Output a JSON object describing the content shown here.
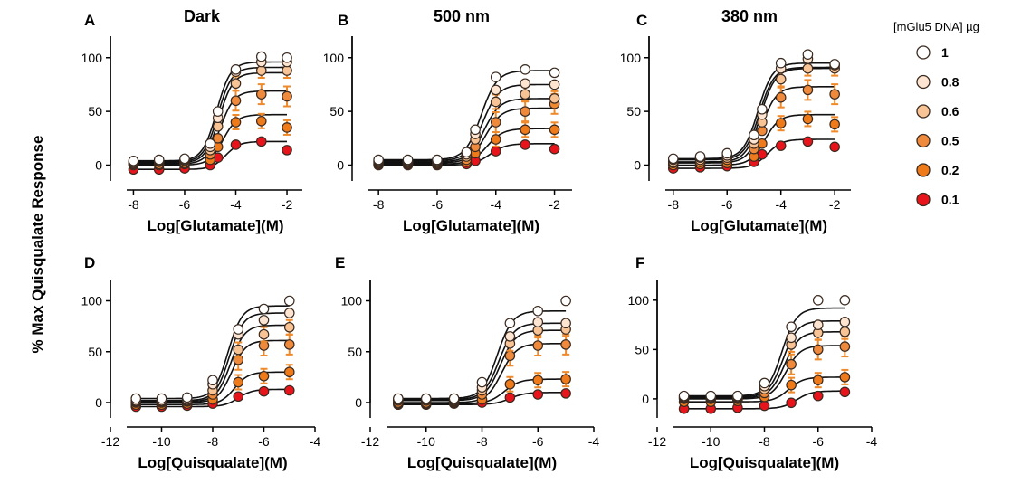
{
  "figure": {
    "ylabel": "% Max Quisqualate Response",
    "legend": {
      "title": "[mGlu5 DNA] µg",
      "entries": [
        {
          "label": "1",
          "color": "#ffffff"
        },
        {
          "label": "0.8",
          "color": "#fde5d2"
        },
        {
          "label": "0.6",
          "color": "#f8c495"
        },
        {
          "label": "0.5",
          "color": "#ef8a3c"
        },
        {
          "label": "0.2",
          "color": "#ee7a1a"
        },
        {
          "label": "0.1",
          "color": "#e8141c"
        }
      ]
    }
  },
  "chart_data": [
    {
      "panel": "A",
      "title": "Dark",
      "type": "scatter",
      "xlabel": "Log[Glutamate](M)",
      "xlim": [
        -8.9,
        -1.4
      ],
      "ylim": [
        -8,
        120
      ],
      "xticks": [
        "-8",
        "-6",
        "-4",
        "-2"
      ],
      "yticks": [
        "0",
        "50",
        "100"
      ],
      "x": [
        -8,
        -7,
        -6,
        -5,
        -4.7,
        -4,
        -3,
        -2
      ],
      "series": [
        {
          "name": "1",
          "values": [
            4,
            5,
            6,
            20,
            50,
            89,
            101,
            100
          ],
          "top": 96,
          "ec50": -4.75
        },
        {
          "name": "0.8",
          "values": [
            3,
            4,
            5,
            17,
            44,
            87,
            96,
            96
          ],
          "top": 91,
          "ec50": -4.7
        },
        {
          "name": "0.6",
          "values": [
            2,
            3,
            4,
            14,
            36,
            76,
            88,
            88
          ],
          "top": 86,
          "ec50": -4.65
        },
        {
          "name": "0.5",
          "values": [
            1,
            1,
            2,
            10,
            25,
            60,
            66,
            64
          ],
          "top": 69,
          "ec50": -4.6
        },
        {
          "name": "0.2",
          "values": [
            0,
            0,
            1,
            5,
            17,
            40,
            41,
            35
          ],
          "top": 47,
          "ec50": -4.5
        },
        {
          "name": "0.1",
          "values": [
            -4,
            -4,
            -3,
            0,
            7,
            19,
            22,
            14
          ],
          "top": 22,
          "ec50": -4.4
        }
      ]
    },
    {
      "panel": "B",
      "title": "500 nm",
      "type": "scatter",
      "xlabel": "Log[Glutamate](M)",
      "xlim": [
        -8.9,
        -1.4
      ],
      "ylim": [
        -8,
        120
      ],
      "xticks": [
        "-8",
        "-6",
        "-4",
        "-2"
      ],
      "yticks": [
        "0",
        "50",
        "100"
      ],
      "x": [
        -8,
        -7,
        -6,
        -5,
        -4.7,
        -4,
        -3,
        -2
      ],
      "series": [
        {
          "name": "1",
          "values": [
            5,
            5,
            5,
            12,
            33,
            82,
            89,
            86
          ],
          "top": 88,
          "ec50": -4.5
        },
        {
          "name": "0.8",
          "values": [
            4,
            4,
            4,
            10,
            29,
            70,
            76,
            75
          ],
          "top": 75,
          "ec50": -4.45
        },
        {
          "name": "0.6",
          "values": [
            3,
            3,
            3,
            8,
            24,
            59,
            66,
            62
          ],
          "top": 62,
          "ec50": -4.4
        },
        {
          "name": "0.5",
          "values": [
            2,
            2,
            2,
            5,
            17,
            40,
            50,
            57
          ],
          "top": 53,
          "ec50": -4.35
        },
        {
          "name": "0.2",
          "values": [
            1,
            1,
            1,
            3,
            11,
            24,
            33,
            33
          ],
          "top": 34,
          "ec50": -4.3
        },
        {
          "name": "0.1",
          "values": [
            0,
            0,
            0,
            1,
            4,
            13,
            19,
            15
          ],
          "top": 20,
          "ec50": -4.2
        }
      ]
    },
    {
      "panel": "C",
      "title": "380 nm",
      "type": "scatter",
      "xlabel": "Log[Glutamate](M)",
      "xlim": [
        -8.9,
        -1.4
      ],
      "ylim": [
        -8,
        120
      ],
      "xticks": [
        "-8",
        "-6",
        "-4",
        "-2"
      ],
      "yticks": [
        "0",
        "50",
        "100"
      ],
      "x": [
        -8,
        -7,
        -6,
        -5,
        -4.7,
        -4,
        -3,
        -2
      ],
      "series": [
        {
          "name": "1",
          "values": [
            6,
            8,
            11,
            28,
            52,
            95,
            103,
            94
          ],
          "top": 95,
          "ec50": -4.85
        },
        {
          "name": "0.8",
          "values": [
            5,
            7,
            9,
            24,
            47,
            90,
            99,
            93
          ],
          "top": 91,
          "ec50": -4.8
        },
        {
          "name": "0.6",
          "values": [
            3,
            5,
            7,
            20,
            40,
            80,
            90,
            90
          ],
          "top": 90,
          "ec50": -4.75
        },
        {
          "name": "0.5",
          "values": [
            2,
            3,
            5,
            15,
            32,
            63,
            70,
            66
          ],
          "top": 73,
          "ec50": -4.7
        },
        {
          "name": "0.2",
          "values": [
            0,
            1,
            2,
            8,
            20,
            39,
            43,
            38
          ],
          "top": 47,
          "ec50": -4.6
        },
        {
          "name": "0.1",
          "values": [
            -3,
            -2,
            -1,
            3,
            10,
            18,
            22,
            17
          ],
          "top": 24,
          "ec50": -4.5
        }
      ]
    },
    {
      "panel": "D",
      "title": "",
      "type": "scatter",
      "xlabel": "Log[Quisqualate](M)",
      "xlim": [
        -12,
        -4
      ],
      "ylim": [
        -8,
        120
      ],
      "xticks": [
        "-12",
        "-10",
        "-8",
        "-6",
        "-4"
      ],
      "yticks": [
        "0",
        "50",
        "100"
      ],
      "x": [
        -11,
        -10,
        -9,
        -8,
        -7,
        -6,
        -5
      ],
      "series": [
        {
          "name": "1",
          "values": [
            4,
            4,
            5,
            22,
            72,
            92,
            100
          ],
          "top": 95,
          "ec50": -7.4
        },
        {
          "name": "0.8",
          "values": [
            2,
            2,
            3,
            18,
            67,
            81,
            88
          ],
          "top": 88,
          "ec50": -7.35
        },
        {
          "name": "0.6",
          "values": [
            1,
            1,
            2,
            12,
            52,
            67,
            74
          ],
          "top": 76,
          "ec50": -7.3
        },
        {
          "name": "0.5",
          "values": [
            0,
            0,
            1,
            8,
            42,
            56,
            57
          ],
          "top": 61,
          "ec50": -7.25
        },
        {
          "name": "0.2",
          "values": [
            -2,
            -2,
            -1,
            3,
            20,
            26,
            30
          ],
          "top": 30,
          "ec50": -7.15
        },
        {
          "name": "0.1",
          "values": [
            -4,
            -4,
            -3,
            -1,
            6,
            11,
            12
          ],
          "top": 13,
          "ec50": -7.0
        }
      ]
    },
    {
      "panel": "E",
      "title": "",
      "type": "scatter",
      "xlabel": "Log[Quisqualate](M)",
      "xlim": [
        -12,
        -4
      ],
      "ylim": [
        -8,
        120
      ],
      "xticks": [
        "-12",
        "-10",
        "-8",
        "-6",
        "-4"
      ],
      "yticks": [
        "0",
        "50",
        "100"
      ],
      "x": [
        -11,
        -10,
        -9,
        -8,
        -7,
        -6,
        -5
      ],
      "series": [
        {
          "name": "1",
          "values": [
            4,
            4,
            4,
            20,
            78,
            90,
            100
          ],
          "top": 90,
          "ec50": -7.45
        },
        {
          "name": "0.8",
          "values": [
            3,
            3,
            3,
            15,
            65,
            79,
            78
          ],
          "top": 78,
          "ec50": -7.4
        },
        {
          "name": "0.6",
          "values": [
            2,
            2,
            2,
            12,
            58,
            71,
            72
          ],
          "top": 71,
          "ec50": -7.35
        },
        {
          "name": "0.5",
          "values": [
            0,
            0,
            1,
            8,
            46,
            56,
            57
          ],
          "top": 58,
          "ec50": -7.3
        },
        {
          "name": "0.2",
          "values": [
            -1,
            -1,
            0,
            3,
            18,
            22,
            23
          ],
          "top": 23,
          "ec50": -7.2
        },
        {
          "name": "0.1",
          "values": [
            -2,
            -2,
            -1,
            0,
            5,
            8,
            9
          ],
          "top": 10,
          "ec50": -7.0
        }
      ]
    },
    {
      "panel": "F",
      "title": "",
      "type": "scatter",
      "xlabel": "Log[Quisqualate](M)",
      "xlim": [
        -12,
        -4
      ],
      "ylim": [
        -12,
        120
      ],
      "xticks": [
        "-12",
        "-10",
        "-8",
        "-6",
        "-4"
      ],
      "yticks": [
        "0",
        "50",
        "100"
      ],
      "x": [
        -11,
        -10,
        -9,
        -8,
        -7,
        -6,
        -5
      ],
      "series": [
        {
          "name": "1",
          "values": [
            3,
            3,
            3,
            16,
            73,
            100,
            100
          ],
          "top": 92,
          "ec50": -7.35
        },
        {
          "name": "0.8",
          "values": [
            2,
            2,
            2,
            13,
            62,
            75,
            78
          ],
          "top": 79,
          "ec50": -7.3
        },
        {
          "name": "0.6",
          "values": [
            1,
            1,
            1,
            10,
            55,
            67,
            68
          ],
          "top": 68,
          "ec50": -7.25
        },
        {
          "name": "0.5",
          "values": [
            0,
            0,
            0,
            6,
            35,
            50,
            53
          ],
          "top": 54,
          "ec50": -7.2
        },
        {
          "name": "0.2",
          "values": [
            -3,
            -3,
            -2,
            2,
            14,
            19,
            22
          ],
          "top": 22,
          "ec50": -7.1
        },
        {
          "name": "0.1",
          "values": [
            -10,
            -10,
            -9,
            -7,
            -4,
            3,
            7
          ],
          "top": 8,
          "ec50": -6.8
        }
      ]
    }
  ]
}
